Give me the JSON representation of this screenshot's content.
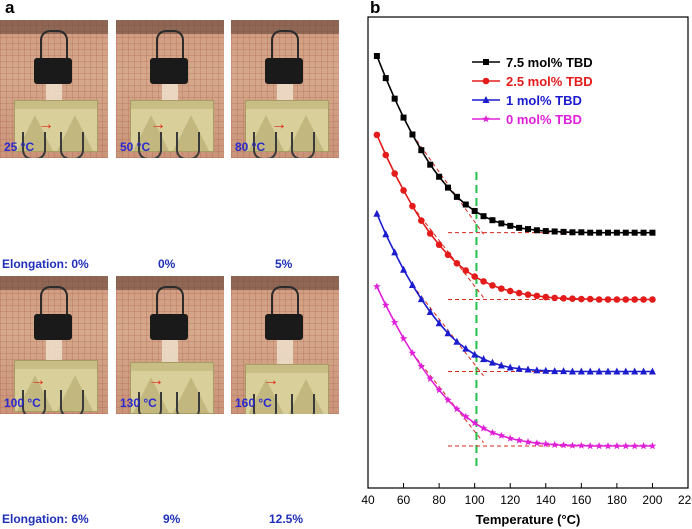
{
  "panel_a": {
    "letter": "a",
    "photos": [
      {
        "temp": "25 °C",
        "elongation": "Elongation: 0%",
        "strip_len": 0.0
      },
      {
        "temp": "50 °C",
        "elongation": "0%",
        "strip_len": 0.0
      },
      {
        "temp": "80 °C",
        "elongation": "5%",
        "strip_len": 0.05
      },
      {
        "temp": "100 °C",
        "elongation": "Elongation: 6%",
        "strip_len": 0.06
      },
      {
        "temp": "130 °C",
        "elongation": "9%",
        "strip_len": 0.09
      },
      {
        "temp": "160 °C",
        "elongation": "12.5%",
        "strip_len": 0.125
      }
    ]
  },
  "panel_b": {
    "letter": "b"
  },
  "chart_data": {
    "type": "line",
    "xlabel": "Temperature (°C)",
    "ylabel": "",
    "xlim": [
      40,
      220
    ],
    "ylim": [
      0,
      100
    ],
    "xticks": [
      40,
      60,
      80,
      100,
      120,
      140,
      160,
      180,
      200,
      220
    ],
    "legend_position": "top-right",
    "reference_line_x": 101,
    "reference_line_color": "#22c24a",
    "tangent_color": "#d42a1e",
    "x": [
      45,
      50,
      55,
      60,
      65,
      70,
      75,
      80,
      85,
      90,
      95,
      100,
      105,
      110,
      115,
      120,
      125,
      130,
      135,
      140,
      145,
      150,
      155,
      160,
      165,
      170,
      175,
      180,
      185,
      190,
      195,
      200
    ],
    "series": [
      {
        "name": "7.5 mol% TBD",
        "color": "#000000",
        "marker": "square",
        "values": [
          94.3,
          88.8,
          83.7,
          79.0,
          74.8,
          70.9,
          67.3,
          64.3,
          61.6,
          59.3,
          57.4,
          55.8,
          54.5,
          53.5,
          52.7,
          52.1,
          51.6,
          51.3,
          51.0,
          50.8,
          50.7,
          50.6,
          50.5,
          50.5,
          50.4,
          50.4,
          50.4,
          50.4,
          50.4,
          50.4,
          50.4,
          50.4
        ]
      },
      {
        "name": "2.5 mol% TBD",
        "color": "#e31b1b",
        "marker": "circle",
        "values": [
          74.7,
          69.7,
          65.1,
          60.9,
          57.0,
          53.4,
          50.2,
          47.4,
          44.9,
          42.8,
          41.0,
          39.5,
          38.3,
          37.3,
          36.5,
          35.9,
          35.4,
          35.0,
          34.7,
          34.4,
          34.2,
          34.1,
          34.0,
          33.9,
          33.9,
          33.8,
          33.8,
          33.8,
          33.8,
          33.8,
          33.8,
          33.8
        ]
      },
      {
        "name": "1 mol% TBD",
        "color": "#1c1ccf",
        "marker": "triangle",
        "values": [
          55.1,
          50.0,
          45.5,
          41.2,
          37.4,
          33.9,
          30.7,
          27.9,
          25.4,
          23.3,
          21.6,
          20.1,
          19.0,
          18.1,
          17.4,
          16.9,
          16.6,
          16.4,
          16.2,
          16.1,
          16.0,
          16.0,
          15.9,
          15.9,
          15.9,
          15.9,
          15.9,
          15.9,
          15.9,
          15.9,
          15.9,
          15.9
        ]
      },
      {
        "name": "0 mol% TBD",
        "color": "#e020d8",
        "marker": "star",
        "values": [
          37.0,
          32.4,
          28.1,
          24.1,
          20.5,
          17.2,
          14.1,
          11.3,
          8.8,
          6.6,
          4.7,
          3.1,
          1.8,
          0.7,
          0.0,
          -0.7,
          -1.2,
          -1.6,
          -1.9,
          -2.1,
          -2.3,
          -2.4,
          -2.5,
          -2.5,
          -2.6,
          -2.6,
          -2.6,
          -2.6,
          -2.6,
          -2.6,
          -2.6,
          -2.6
        ]
      }
    ]
  }
}
